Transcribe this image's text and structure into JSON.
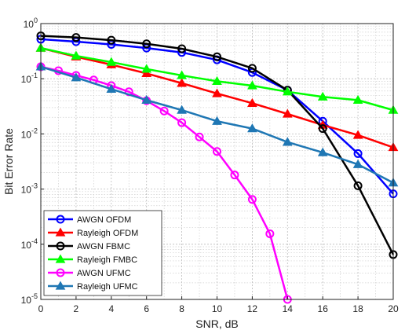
{
  "chart_data": {
    "type": "line",
    "title": "",
    "xlabel": "SNR, dB",
    "ylabel": "Bit Error Rate",
    "x_ticks": [
      "0",
      "2",
      "4",
      "6",
      "8",
      "10",
      "12",
      "14",
      "16",
      "18",
      "20"
    ],
    "xlim": [
      0,
      20
    ],
    "ylim": [
      1e-05,
      1
    ],
    "y_scale": "log",
    "y_ticks": [
      {
        "base": "10",
        "exp": "-5",
        "value": 1e-05
      },
      {
        "base": "10",
        "exp": "-4",
        "value": 0.0001
      },
      {
        "base": "10",
        "exp": "-3",
        "value": 0.001
      },
      {
        "base": "10",
        "exp": "-2",
        "value": 0.01
      },
      {
        "base": "10",
        "exp": "-1",
        "value": 0.1
      },
      {
        "base": "10",
        "exp": "0",
        "value": 1
      }
    ],
    "grid": true,
    "minor_grid": true,
    "legend_position": "bottom-left",
    "series": [
      {
        "name": "AWGN OFDM",
        "color": "#0000ff",
        "marker": "circle",
        "x": [
          0,
          2,
          4,
          6,
          8,
          10,
          12,
          14,
          16,
          18,
          20
        ],
        "y": [
          0.52,
          0.47,
          0.42,
          0.36,
          0.3,
          0.22,
          0.13,
          0.062,
          0.017,
          0.0044,
          0.00082
        ]
      },
      {
        "name": "Rayleigh OFDM",
        "color": "#ff0000",
        "marker": "triangle",
        "x": [
          0,
          2,
          4,
          6,
          8,
          10,
          12,
          14,
          16,
          18,
          20
        ],
        "y": [
          0.36,
          0.25,
          0.18,
          0.125,
          0.083,
          0.054,
          0.036,
          0.023,
          0.0145,
          0.0095,
          0.0057
        ]
      },
      {
        "name": "AWGN FBMC",
        "color": "#000000",
        "marker": "circle",
        "x": [
          0,
          2,
          4,
          6,
          8,
          10,
          12,
          14,
          16,
          18,
          20
        ],
        "y": [
          0.6,
          0.56,
          0.5,
          0.43,
          0.35,
          0.25,
          0.155,
          0.062,
          0.0125,
          0.00115,
          6.5e-05
        ]
      },
      {
        "name": "Rayleigh FMBC",
        "color": "#00ff00",
        "marker": "triangle",
        "x": [
          0,
          2,
          4,
          6,
          8,
          10,
          12,
          14,
          16,
          18,
          20
        ],
        "y": [
          0.36,
          0.26,
          0.2,
          0.15,
          0.115,
          0.09,
          0.075,
          0.058,
          0.047,
          0.041,
          0.027
        ]
      },
      {
        "name": "AWGN UFMC",
        "color": "#ff00ff",
        "marker": "circle",
        "x": [
          0,
          1,
          2,
          3,
          4,
          5,
          6,
          7,
          8,
          9,
          10,
          11,
          12,
          13,
          14
        ],
        "y": [
          0.165,
          0.14,
          0.115,
          0.095,
          0.075,
          0.058,
          0.04,
          0.026,
          0.016,
          0.0088,
          0.0048,
          0.0018,
          0.00065,
          0.000155,
          1e-05
        ]
      },
      {
        "name": "Rayleigh UFMC",
        "color": "#1f77b4",
        "marker": "triangle",
        "x": [
          0,
          2,
          4,
          6,
          8,
          10,
          12,
          14,
          16,
          18,
          20
        ],
        "y": [
          0.165,
          0.105,
          0.065,
          0.041,
          0.027,
          0.017,
          0.0125,
          0.0071,
          0.0046,
          0.0028,
          0.0013
        ]
      }
    ]
  }
}
